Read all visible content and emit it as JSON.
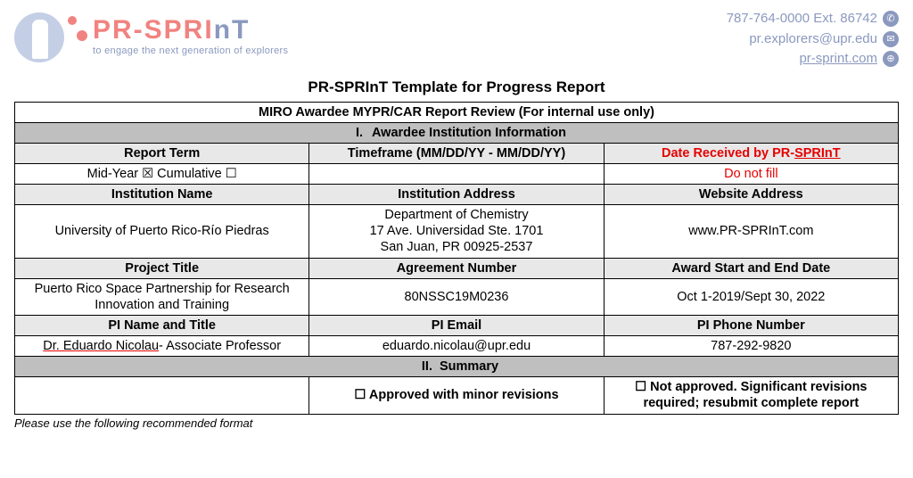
{
  "header": {
    "logo_text": "PR-SPRI",
    "logo_suffix": "nT",
    "tagline": "to engage the next generation of explorers",
    "contact": {
      "phone": "787-764-0000 Ext. 86742",
      "email": "pr.explorers@upr.edu",
      "web": "pr-sprint.com"
    }
  },
  "title": "PR-SPRInT Template for Progress Report",
  "table": {
    "banner": "MIRO Awardee MYPR/CAR Report Review (For internal use only)",
    "section1": "Awardee Institution Information",
    "row1": {
      "h1": "Report Term",
      "h2": "Timeframe (MM/DD/YY - MM/DD/YY)",
      "h3a": "Date Received by PR-",
      "h3b": "SPRInT"
    },
    "row1v": {
      "term": "Mid-Year ☒     Cumulative ☐",
      "timeframe": "",
      "date": "Do not fill"
    },
    "row2": {
      "h1": "Institution Name",
      "h2": "Institution Address",
      "h3": "Website Address"
    },
    "row2v": {
      "name": "University of Puerto Rico-Río Piedras",
      "addr": "Department of Chemistry\n17 Ave. Universidad Ste. 1701\nSan Juan, PR 00925-2537",
      "web": "www.PR-SPRInT.com"
    },
    "row3": {
      "h1": "Project Title",
      "h2": "Agreement Number",
      "h3": "Award Start and End Date"
    },
    "row3v": {
      "title": "Puerto Rico Space Partnership for Research Innovation and Training",
      "agreement": "80NSSC19M0236",
      "dates": "Oct 1-2019/Sept 30, 2022"
    },
    "row4": {
      "h1": "PI Name and Title",
      "h2": "PI Email",
      "h3": "PI Phone Number"
    },
    "row4v": {
      "name": "Dr. Eduardo Nicolau- Associate Professor",
      "email": "eduardo.nicolau@upr.edu",
      "phone": "787-292-9820"
    },
    "section2": "Summary",
    "approval": {
      "c1": "",
      "c2": "☐ Approved with minor revisions",
      "c3": "☐ Not approved. Significant revisions required; resubmit complete report"
    }
  },
  "footer": "Please use the following recommended format"
}
